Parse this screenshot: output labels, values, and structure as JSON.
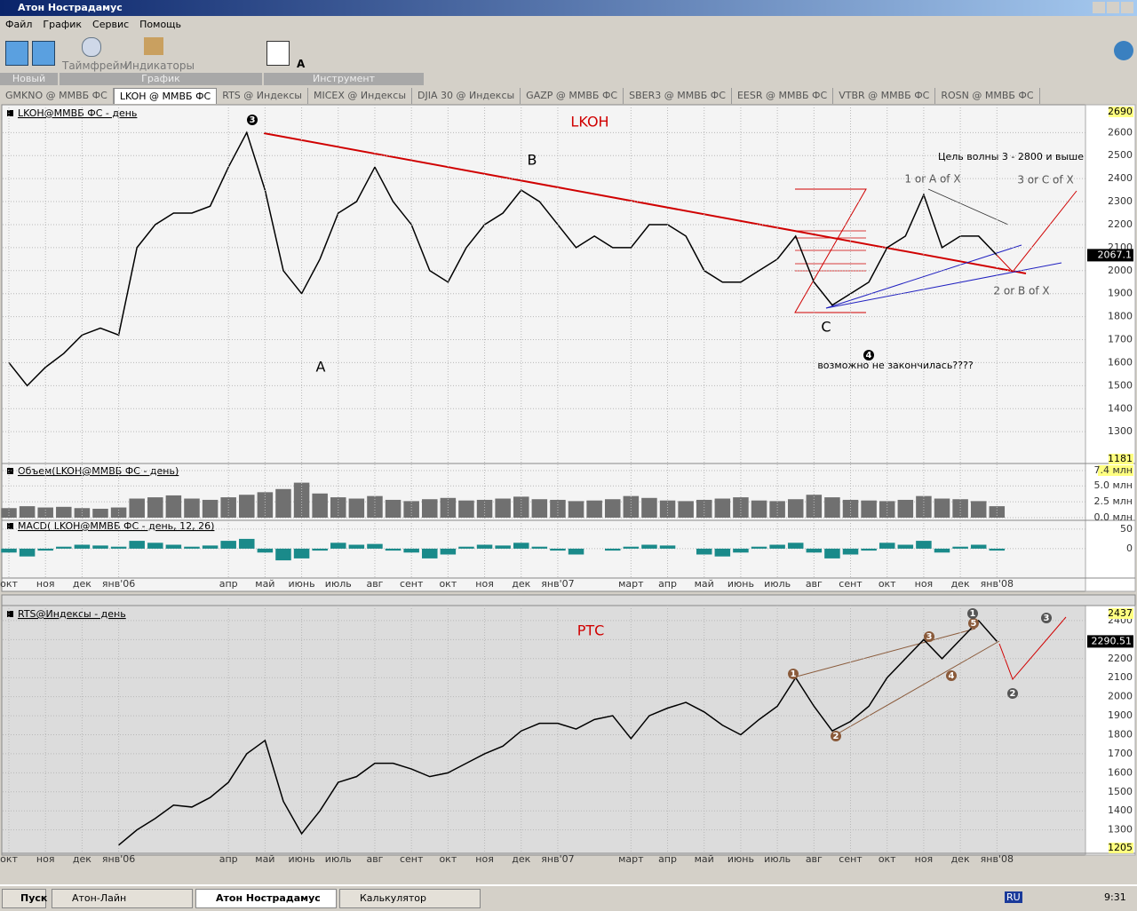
{
  "window": {
    "title": "Атон Нострадамус"
  },
  "menu": [
    "Файл",
    "График",
    "Сервис",
    "Помощь"
  ],
  "toolbar": {
    "timeframe": "Таймфрейм",
    "indicators": "Индикаторы",
    "groups": [
      "Новый",
      "График",
      "Инструмент"
    ],
    "text_tool": "A"
  },
  "tabs": [
    "GMKNO @ ММВБ ФС",
    "LKOH @ ММВБ ФС",
    "RTS @ Индексы",
    "MICEX @ Индексы",
    "DJIA 30 @ Индексы",
    "GAZP @ ММВБ ФС",
    "SBER3 @ ММВБ ФС",
    "EESR @ ММВБ ФС",
    "VTBR @ ММВБ ФС",
    "ROSN @ ММВБ ФС"
  ],
  "chart_data": [
    {
      "type": "line",
      "title": "LKOH@ММВБ ФС - день",
      "x": [
        0,
        0.5,
        1,
        1.5,
        2,
        2.5,
        3,
        3.5,
        4,
        4.5,
        5,
        5.5,
        6,
        6.5,
        7,
        7.5,
        8,
        8.5,
        9,
        9.5,
        10,
        10.5,
        11,
        11.5,
        12,
        12.5,
        13,
        13.5,
        14,
        14.5,
        15,
        15.5,
        16,
        16.5,
        17,
        17.5,
        18,
        18.5,
        19,
        19.5,
        20,
        20.5,
        21,
        21.5,
        22,
        22.5,
        23,
        23.5,
        24,
        24.5,
        25,
        25.5,
        26,
        26.5,
        27
      ],
      "series": [
        {
          "color": "#000000",
          "values": [
            1600,
            1500,
            1580,
            1640,
            1720,
            1750,
            1720,
            2100,
            2200,
            2250,
            2250,
            2280,
            2450,
            2600,
            2350,
            2000,
            1900,
            2050,
            2250,
            2300,
            2450,
            2300,
            2200,
            2000,
            1950,
            2100,
            2200,
            2250,
            2350,
            2300,
            2200,
            2100,
            2150,
            2100,
            2100,
            2200,
            2200,
            2150,
            2000,
            1950,
            1950,
            2000,
            2050,
            2150,
            1950,
            1850,
            1900,
            1950,
            2100,
            2150,
            2330,
            2100,
            2150,
            2150,
            2067.1
          ]
        }
      ],
      "xlim": [
        -0.17,
        29.42
      ],
      "ylim": [
        1181,
        2690
      ],
      "yticks": [
        1300,
        1400,
        1500,
        1600,
        1700,
        1800,
        1900,
        2000,
        2100,
        2200,
        2300,
        2400,
        2500,
        2600
      ],
      "grid": true,
      "annotations": [
        "LKOH",
        "3",
        "A",
        "B",
        "C",
        "Цель волны 3 - 2800 и выше",
        "1 or A of X",
        "3 or C of X",
        "2 or B of X",
        "4",
        "возможно не закончилась????"
      ]
    },
    {
      "type": "bar",
      "title": "Объем(LKOH@ММВБ ФС - день)",
      "x": [
        0,
        0.5,
        1,
        1.5,
        2,
        2.5,
        3,
        3.5,
        4,
        4.5,
        5,
        5.5,
        6,
        6.5,
        7,
        7.5,
        8,
        8.5,
        9,
        9.5,
        10,
        10.5,
        11,
        11.5,
        12,
        12.5,
        13,
        13.5,
        14,
        14.5,
        15,
        15.5,
        16,
        16.5,
        17,
        17.5,
        18,
        18.5,
        19,
        19.5,
        20,
        20.5,
        21,
        21.5,
        22,
        22.5,
        23,
        23.5,
        24,
        24.5,
        25,
        25.5,
        26,
        26.5,
        27
      ],
      "values": [
        1.5,
        1.8,
        1.6,
        1.7,
        1.5,
        1.4,
        1.6,
        3.0,
        3.2,
        3.5,
        3.0,
        2.8,
        3.2,
        3.6,
        4.0,
        4.5,
        5.5,
        3.8,
        3.2,
        3.0,
        3.4,
        2.8,
        2.6,
        2.9,
        3.1,
        2.7,
        2.8,
        3.0,
        3.3,
        2.9,
        2.8,
        2.6,
        2.7,
        2.9,
        3.4,
        3.1,
        2.7,
        2.6,
        2.8,
        3.0,
        3.2,
        2.7,
        2.6,
        2.9,
        3.6,
        3.2,
        2.8,
        2.7,
        2.6,
        2.8,
        3.4,
        3.0,
        2.9,
        2.6,
        1.8
      ],
      "color": "#707070",
      "xlim": [
        -0.17,
        29.42
      ],
      "ylim": [
        0,
        7.4
      ],
      "yticks": [
        {
          "value": 0,
          "label": "0.0 млн"
        },
        {
          "value": 2.5,
          "label": "2.5 млн"
        },
        {
          "value": 5,
          "label": "5.0 млн"
        },
        {
          "value": 7.4,
          "label": "7.4 млн"
        }
      ]
    },
    {
      "type": "bar",
      "title": "MACD( LKOH@ММВБ ФС - день, 12, 26)",
      "x": [
        0,
        0.5,
        1,
        1.5,
        2,
        2.5,
        3,
        3.5,
        4,
        4.5,
        5,
        5.5,
        6,
        6.5,
        7,
        7.5,
        8,
        8.5,
        9,
        9.5,
        10,
        10.5,
        11,
        11.5,
        12,
        12.5,
        13,
        13.5,
        14,
        14.5,
        15,
        15.5,
        16,
        16.5,
        17,
        17.5,
        18,
        18.5,
        19,
        19.5,
        20,
        20.5,
        21,
        21.5,
        22,
        22.5,
        23,
        23.5,
        24,
        24.5,
        25,
        25.5,
        26,
        26.5,
        27
      ],
      "values": [
        -10,
        -20,
        -5,
        5,
        10,
        8,
        5,
        20,
        15,
        10,
        5,
        8,
        20,
        25,
        -10,
        -30,
        -25,
        -5,
        15,
        10,
        12,
        -5,
        -10,
        -25,
        -15,
        5,
        10,
        8,
        15,
        5,
        -5,
        -15,
        0,
        -5,
        5,
        10,
        8,
        0,
        -15,
        -20,
        -10,
        5,
        10,
        15,
        -10,
        -25,
        -15,
        -5,
        15,
        10,
        20,
        -10,
        5,
        10,
        -5
      ],
      "color": "#1a8a8a",
      "xlim": [
        -0.17,
        29.42
      ],
      "ylim": [
        -73,
        68
      ],
      "yticks": [
        0,
        50
      ],
      "xticks": [
        {
          "value": 0,
          "label": "окт"
        },
        {
          "value": 1,
          "label": "ноя"
        },
        {
          "value": 2,
          "label": "дек"
        },
        {
          "value": 3,
          "label": "янв'06"
        },
        {
          "value": 6,
          "label": "апр"
        },
        {
          "value": 7,
          "label": "май"
        },
        {
          "value": 8,
          "label": "июнь"
        },
        {
          "value": 9,
          "label": "июль"
        },
        {
          "value": 10,
          "label": "авг"
        },
        {
          "value": 11,
          "label": "сент"
        },
        {
          "value": 12,
          "label": "окт"
        },
        {
          "value": 13,
          "label": "ноя"
        },
        {
          "value": 14,
          "label": "дек"
        },
        {
          "value": 15,
          "label": "янв'07"
        },
        {
          "value": 17,
          "label": "март"
        },
        {
          "value": 18,
          "label": "апр"
        },
        {
          "value": 19,
          "label": "май"
        },
        {
          "value": 20,
          "label": "июнь"
        },
        {
          "value": 21,
          "label": "июль"
        },
        {
          "value": 22,
          "label": "авг"
        },
        {
          "value": 23,
          "label": "сент"
        },
        {
          "value": 24,
          "label": "окт"
        },
        {
          "value": 25,
          "label": "ноя"
        },
        {
          "value": 26,
          "label": "дек"
        },
        {
          "value": 27,
          "label": "янв'08"
        }
      ]
    },
    {
      "type": "line",
      "title": "RTS@Индексы - день",
      "x": [
        3,
        3.5,
        4,
        4.5,
        5,
        5.5,
        6,
        6.5,
        7,
        7.5,
        8,
        8.5,
        9,
        9.5,
        10,
        10.5,
        11,
        11.5,
        12,
        12.5,
        13,
        13.5,
        14,
        14.5,
        15,
        15.5,
        16,
        16.5,
        17,
        17.5,
        18,
        18.5,
        19,
        19.5,
        20,
        20.5,
        21,
        21.5,
        22,
        22.5,
        23,
        23.5,
        24,
        24.5,
        25,
        25.5,
        26,
        26.5,
        27
      ],
      "series": [
        {
          "color": "#000000",
          "values": [
            1220,
            1300,
            1360,
            1430,
            1420,
            1470,
            1550,
            1700,
            1770,
            1450,
            1280,
            1400,
            1550,
            1580,
            1650,
            1650,
            1620,
            1580,
            1600,
            1650,
            1700,
            1740,
            1820,
            1860,
            1860,
            1830,
            1880,
            1900,
            1780,
            1900,
            1940,
            1970,
            1920,
            1850,
            1800,
            1880,
            1950,
            2100,
            1950,
            1820,
            1870,
            1950,
            2100,
            2200,
            2300,
            2200,
            2300,
            2400,
            2290.51
          ]
        }
      ],
      "xlim": [
        -0.17,
        29.42
      ],
      "ylim": [
        1205,
        2437
      ],
      "yticks": [
        1300,
        1400,
        1500,
        1600,
        1700,
        1800,
        1900,
        2000,
        2100,
        2200,
        2300,
        2400
      ],
      "grid": true,
      "xticks": [
        {
          "value": 0,
          "label": "окт"
        },
        {
          "value": 1,
          "label": "ноя"
        },
        {
          "value": 2,
          "label": "дек"
        },
        {
          "value": 3,
          "label": "янв'06"
        },
        {
          "value": 6,
          "label": "апр"
        },
        {
          "value": 7,
          "label": "май"
        },
        {
          "value": 8,
          "label": "июнь"
        },
        {
          "value": 9,
          "label": "июль"
        },
        {
          "value": 10,
          "label": "авг"
        },
        {
          "value": 11,
          "label": "сент"
        },
        {
          "value": 12,
          "label": "окт"
        },
        {
          "value": 13,
          "label": "ноя"
        },
        {
          "value": 14,
          "label": "дек"
        },
        {
          "value": 15,
          "label": "янв'07"
        },
        {
          "value": 17,
          "label": "март"
        },
        {
          "value": 18,
          "label": "апр"
        },
        {
          "value": 19,
          "label": "май"
        },
        {
          "value": 20,
          "label": "июнь"
        },
        {
          "value": 21,
          "label": "июль"
        },
        {
          "value": 22,
          "label": "авг"
        },
        {
          "value": 23,
          "label": "сент"
        },
        {
          "value": 24,
          "label": "окт"
        },
        {
          "value": 25,
          "label": "ноя"
        },
        {
          "value": 26,
          "label": "дек"
        },
        {
          "value": 27,
          "label": "янв'08"
        }
      ],
      "annotations": [
        "РТС",
        "1",
        "2",
        "3",
        "4",
        "5",
        "1",
        "2",
        "3"
      ]
    }
  ],
  "taskbar": {
    "start": "Пуск",
    "buttons": [
      "Атон-Лайн",
      "Атон Нострадамус",
      "Калькулятор"
    ],
    "lang": "RU",
    "clock": "9:31"
  }
}
